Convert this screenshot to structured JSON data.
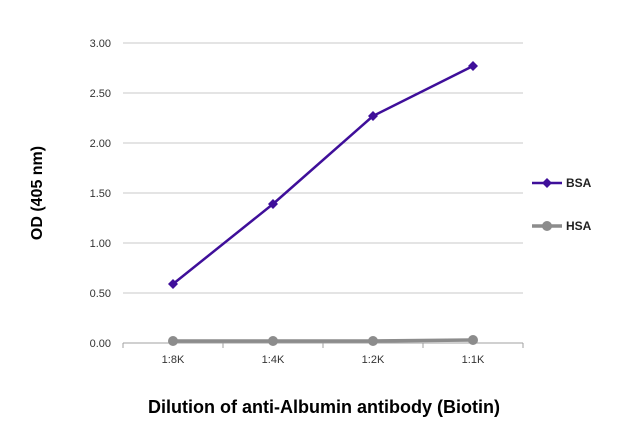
{
  "chart_data": {
    "type": "line",
    "categories": [
      "1:8K",
      "1:4K",
      "1:2K",
      "1:1K"
    ],
    "series": [
      {
        "name": "BSA",
        "values": [
          0.59,
          1.39,
          2.27,
          2.77
        ],
        "color": "#3f0f9a",
        "marker": "diamond"
      },
      {
        "name": "HSA",
        "values": [
          0.02,
          0.02,
          0.02,
          0.03
        ],
        "color": "#8c8c8c",
        "marker": "circle"
      }
    ],
    "xlabel": "Dilution of anti-Albumin antibody (Biotin)",
    "ylabel": "OD (405 nm)",
    "ylim": [
      0,
      3
    ],
    "yticks": [
      "0.00",
      "0.50",
      "1.00",
      "1.50",
      "2.00",
      "2.50",
      "3.00"
    ],
    "grid": true,
    "legend": "right"
  }
}
